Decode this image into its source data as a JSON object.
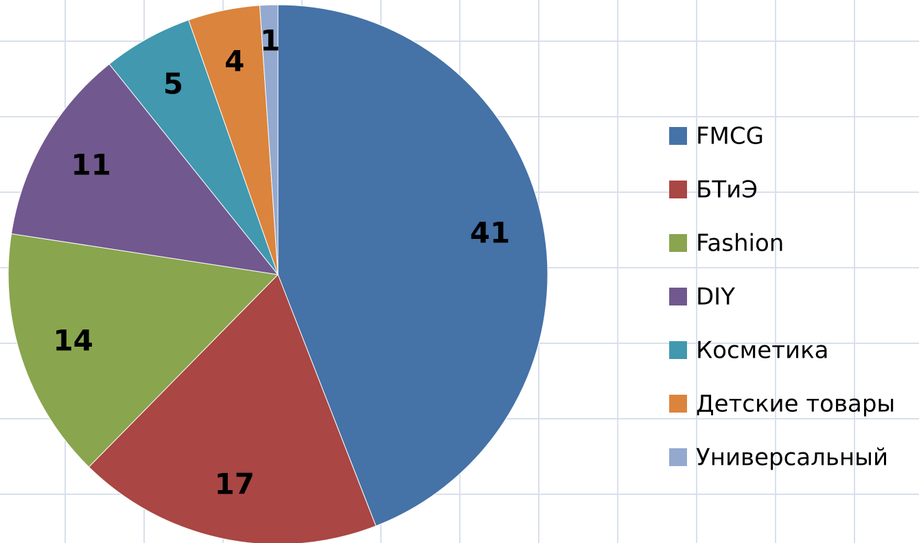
{
  "chart_data": {
    "type": "pie",
    "categories": [
      "FMCG",
      "БТиЭ",
      "Fashion",
      "DIY",
      "Косметика",
      "Детские товары",
      "Универсальный"
    ],
    "values": [
      41,
      17,
      14,
      11,
      5,
      4,
      1
    ],
    "colors": [
      "#4572a7",
      "#aa4643",
      "#89a54e",
      "#71588f",
      "#4198af",
      "#db843d",
      "#93a9cf"
    ],
    "legend": "right"
  }
}
